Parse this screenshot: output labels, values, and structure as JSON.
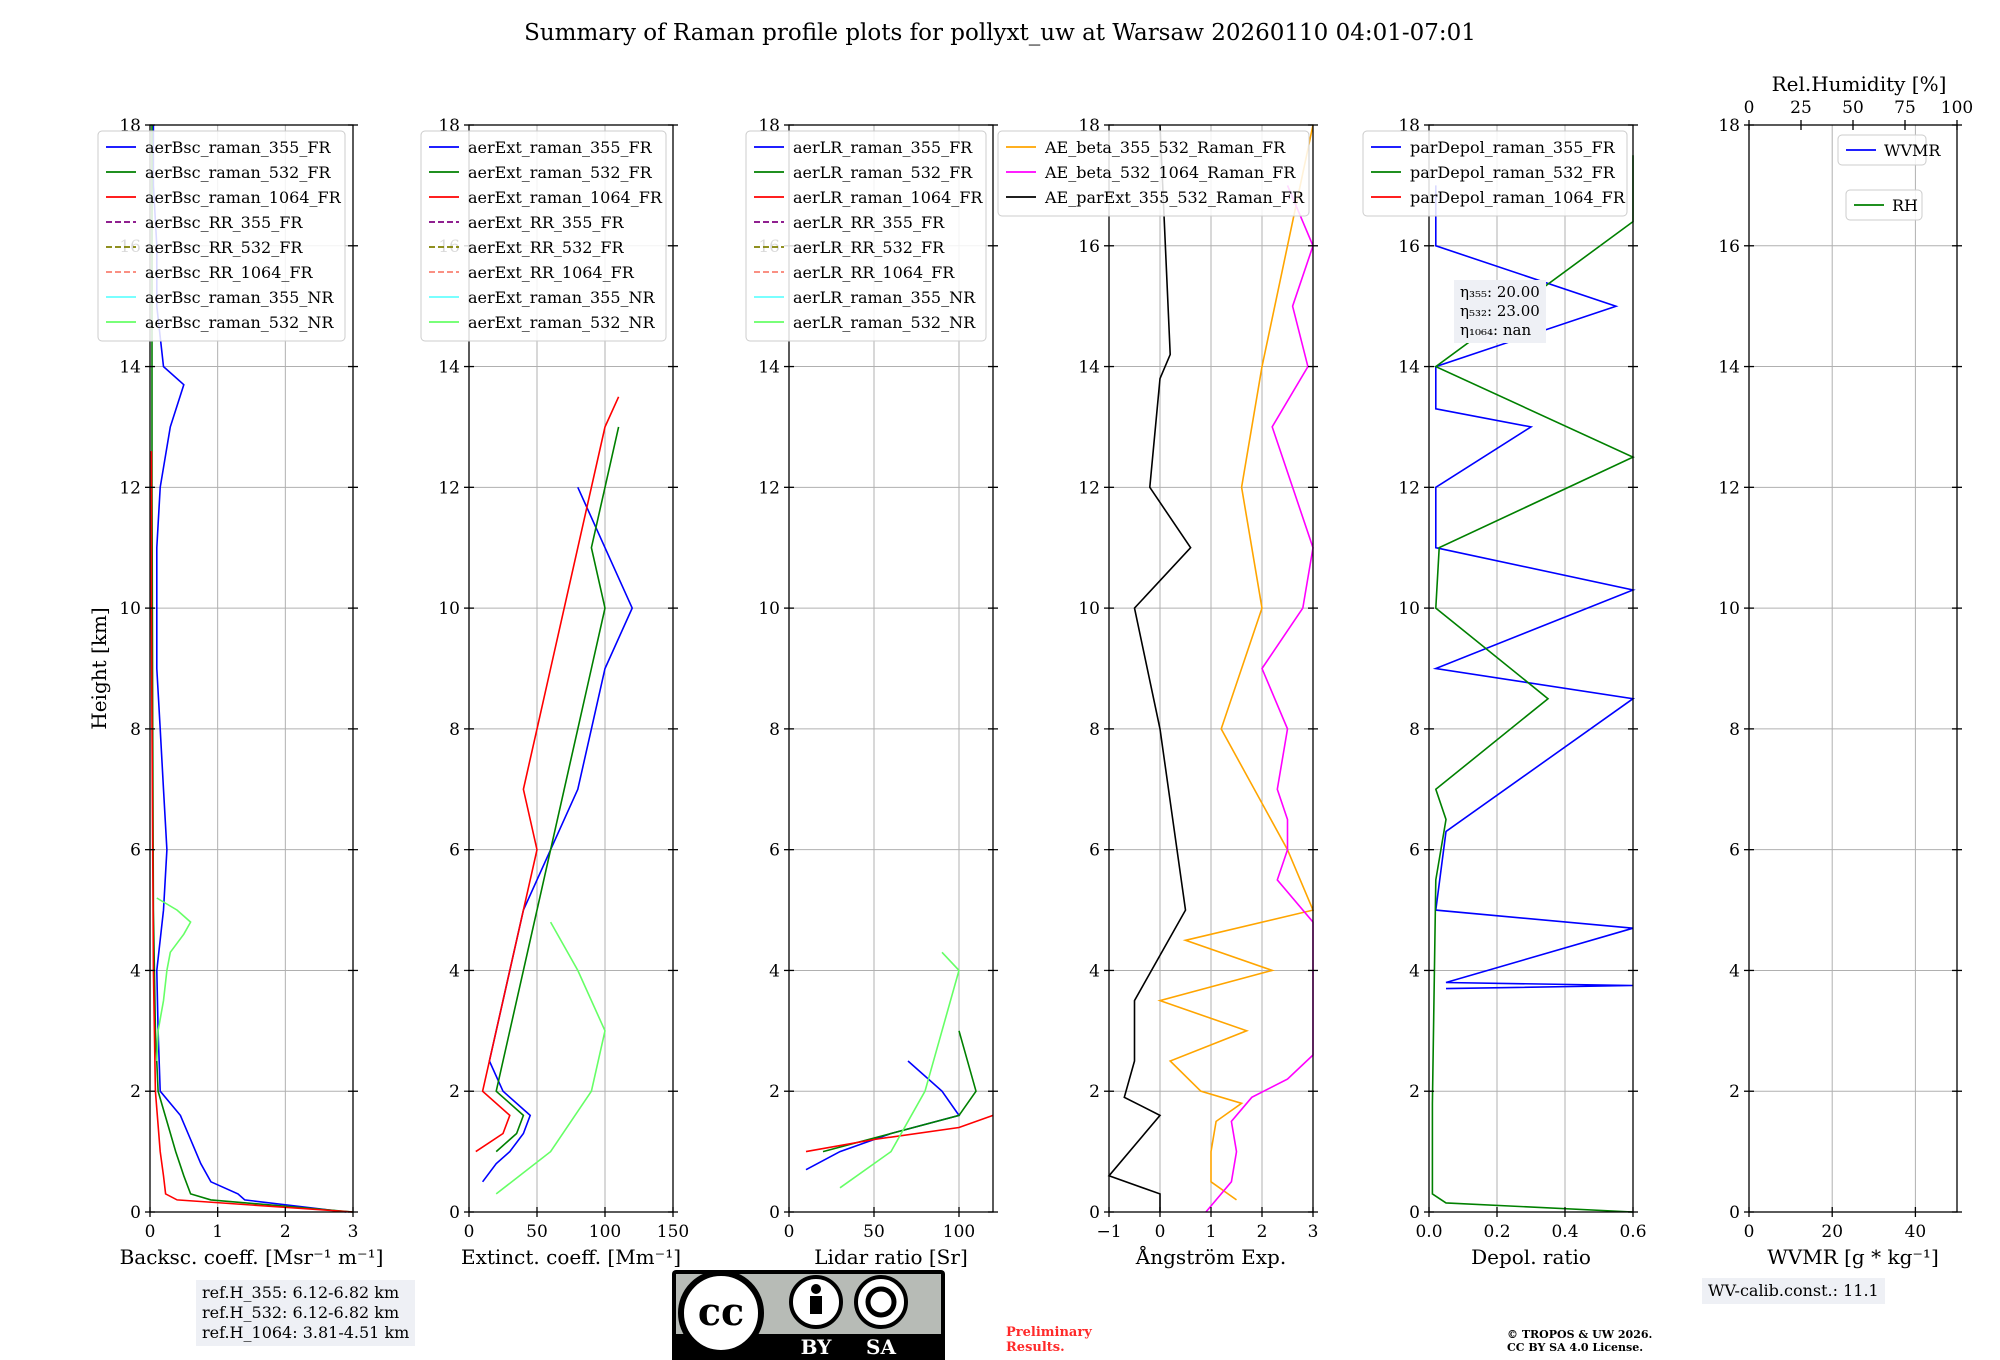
{
  "title": "Summary of Raman profile plots for pollyxt_uw at Warsaw 20260110 04:01-07:01",
  "colors": {
    "blue": "#0000ff",
    "green": "#008000",
    "red": "#ff0000",
    "purple": "#800080",
    "olive": "#808000",
    "salmon": "#fa8072",
    "cyan": "#66ffff",
    "lightgreen": "#66ff66",
    "orange": "#ffa500",
    "magenta": "#ff00ff",
    "black": "#000000"
  },
  "chart_data": [
    {
      "id": "bsc",
      "type": "line",
      "ylabel": "Height [km]",
      "xlabel": "Backsc. coeff. [Msr⁻¹ m⁻¹]",
      "xlim": [
        0,
        3
      ],
      "ylim": [
        0,
        18
      ],
      "xticks": [
        "0",
        "1",
        "2",
        "3"
      ],
      "yticks": [
        "0",
        "2",
        "4",
        "6",
        "8",
        "10",
        "12",
        "14",
        "16",
        "18"
      ],
      "legend": [
        "aerBsc_raman_355_FR",
        "aerBsc_raman_532_FR",
        "aerBsc_raman_1064_FR",
        "aerBsc_RR_355_FR",
        "aerBsc_RR_532_FR",
        "aerBsc_RR_1064_FR",
        "aerBsc_raman_355_NR",
        "aerBsc_raman_532_NR"
      ],
      "series": [
        {
          "name": "aerBsc_raman_355_FR",
          "color": "blue",
          "h": [
            0,
            0.2,
            0.3,
            0.5,
            0.8,
            1.2,
            1.6,
            2,
            3,
            4,
            5,
            6,
            7,
            8,
            9,
            10,
            11,
            12,
            13,
            13.7,
            14,
            15,
            16,
            17,
            18
          ],
          "v": [
            2.9,
            1.4,
            1.3,
            0.9,
            0.75,
            0.6,
            0.45,
            0.15,
            0.12,
            0.1,
            0.2,
            0.25,
            0.2,
            0.15,
            0.1,
            0.1,
            0.1,
            0.15,
            0.3,
            0.5,
            0.2,
            0.1,
            0.1,
            0.05,
            0.05
          ]
        },
        {
          "name": "aerBsc_raman_532_FR",
          "color": "green",
          "h": [
            0,
            0.2,
            0.3,
            0.6,
            1,
            1.5,
            2,
            3,
            5,
            8,
            12,
            18
          ],
          "v": [
            3.0,
            0.9,
            0.6,
            0.5,
            0.38,
            0.25,
            0.12,
            0.08,
            0.05,
            0.04,
            0.03,
            0.03
          ]
        },
        {
          "name": "aerBsc_raman_1064_FR",
          "color": "red",
          "h": [
            0,
            0.2,
            0.3,
            0.6,
            1,
            2,
            4,
            6,
            8,
            10,
            12,
            12.6
          ],
          "v": [
            3.0,
            0.4,
            0.23,
            0.2,
            0.15,
            0.08,
            0.05,
            0.04,
            0.03,
            0.02,
            0.02,
            0.02
          ]
        },
        {
          "name": "aerBsc_raman_532_NR",
          "color": "lightgreen",
          "h": [
            2.5,
            3,
            3.5,
            4,
            4.3,
            4.6,
            4.8,
            5,
            5.2
          ],
          "v": [
            0.1,
            0.12,
            0.2,
            0.25,
            0.3,
            0.5,
            0.6,
            0.4,
            0.1
          ]
        }
      ],
      "info": [
        "ref.H_355: 6.12-6.82 km",
        "ref.H_532: 6.12-6.82 km",
        "ref.H_1064: 3.81-4.51 km"
      ]
    },
    {
      "id": "ext",
      "type": "line",
      "xlabel": "Extinct. coeff. [Mm⁻¹]",
      "xlim": [
        0,
        150
      ],
      "ylim": [
        0,
        18
      ],
      "xticks": [
        "0",
        "50",
        "100",
        "150"
      ],
      "yticks": [
        "0",
        "2",
        "4",
        "6",
        "8",
        "10",
        "12",
        "14",
        "16",
        "18"
      ],
      "legend": [
        "aerExt_raman_355_FR",
        "aerExt_raman_532_FR",
        "aerExt_raman_1064_FR",
        "aerExt_RR_355_FR",
        "aerExt_RR_532_FR",
        "aerExt_RR_1064_FR",
        "aerExt_raman_355_NR",
        "aerExt_raman_532_NR"
      ],
      "series": [
        {
          "name": "aerExt_raman_355_FR",
          "color": "blue",
          "h": [
            0.5,
            0.8,
            1,
            1.3,
            1.6,
            2,
            2.5,
            3,
            4,
            5,
            6,
            7,
            8,
            9,
            10,
            11,
            12
          ],
          "v": [
            10,
            20,
            30,
            40,
            45,
            25,
            15,
            20,
            30,
            40,
            60,
            80,
            90,
            100,
            120,
            100,
            80
          ]
        },
        {
          "name": "aerExt_raman_532_FR",
          "color": "green",
          "h": [
            1,
            1.3,
            1.6,
            2,
            3,
            4,
            5,
            6,
            7,
            8,
            9,
            10,
            11,
            12,
            13
          ],
          "v": [
            20,
            35,
            40,
            20,
            30,
            40,
            50,
            60,
            70,
            80,
            90,
            100,
            90,
            100,
            110
          ]
        },
        {
          "name": "aerExt_raman_1064_FR",
          "color": "red",
          "h": [
            1,
            1.3,
            1.6,
            2,
            3,
            4,
            5,
            6,
            7,
            8,
            9,
            10,
            11,
            12,
            13,
            13.5
          ],
          "v": [
            5,
            25,
            30,
            10,
            20,
            30,
            40,
            50,
            40,
            50,
            60,
            70,
            80,
            90,
            100,
            110
          ]
        },
        {
          "name": "aerExt_raman_532_NR",
          "color": "lightgreen",
          "h": [
            0.3,
            1,
            2,
            3,
            4,
            4.8
          ],
          "v": [
            20,
            60,
            90,
            100,
            80,
            60
          ]
        }
      ]
    },
    {
      "id": "lr",
      "type": "line",
      "xlabel": "Lidar ratio [Sr]",
      "xlim": [
        0,
        120
      ],
      "ylim": [
        0,
        18
      ],
      "xticks": [
        "0",
        "50",
        "100"
      ],
      "yticks": [
        "0",
        "2",
        "4",
        "6",
        "8",
        "10",
        "12",
        "14",
        "16",
        "18"
      ],
      "legend": [
        "aerLR_raman_355_FR",
        "aerLR_raman_532_FR",
        "aerLR_raman_1064_FR",
        "aerLR_RR_355_FR",
        "aerLR_RR_532_FR",
        "aerLR_RR_1064_FR",
        "aerLR_raman_355_NR",
        "aerLR_raman_532_NR"
      ],
      "series": [
        {
          "name": "aerLR_raman_355_FR",
          "color": "blue",
          "h": [
            0.7,
            1,
            1.3,
            1.6,
            2,
            2.5
          ],
          "v": [
            10,
            30,
            60,
            100,
            90,
            70
          ]
        },
        {
          "name": "aerLR_raman_532_FR",
          "color": "green",
          "h": [
            1,
            1.3,
            1.6,
            2,
            3
          ],
          "v": [
            20,
            60,
            100,
            110,
            100
          ]
        },
        {
          "name": "aerLR_raman_1064_FR",
          "color": "red",
          "h": [
            1,
            1.2,
            1.4,
            1.6
          ],
          "v": [
            10,
            50,
            100,
            120
          ]
        },
        {
          "name": "aerLR_raman_532_NR",
          "color": "lightgreen",
          "h": [
            0.4,
            1,
            2,
            3,
            4,
            4.3
          ],
          "v": [
            30,
            60,
            80,
            90,
            100,
            90
          ]
        }
      ]
    },
    {
      "id": "ae",
      "type": "line",
      "xlabel": "Ångström Exp.",
      "xlim": [
        -1,
        3
      ],
      "ylim": [
        0,
        18
      ],
      "xticks": [
        "−1",
        "0",
        "1",
        "2",
        "3"
      ],
      "yticks": [
        "0",
        "2",
        "4",
        "6",
        "8",
        "10",
        "12",
        "14",
        "16",
        "18"
      ],
      "legend": [
        "AE_beta_355_532_Raman_FR",
        "AE_beta_532_1064_Raman_FR",
        "AE_parExt_355_532_Raman_FR"
      ],
      "series": [
        {
          "name": "AE_beta_355_532_Raman_FR",
          "color": "orange",
          "h": [
            0.2,
            0.5,
            1,
            1.5,
            1.8,
            2,
            2.5,
            3,
            3.5,
            4,
            4.5,
            5,
            6,
            8,
            10,
            12,
            14,
            16,
            18
          ],
          "v": [
            1.5,
            1.0,
            1.0,
            1.1,
            1.6,
            0.8,
            0.2,
            1.7,
            0.0,
            2.2,
            0.5,
            3.0,
            2.5,
            1.2,
            2.0,
            1.6,
            2.0,
            2.5,
            3.0
          ]
        },
        {
          "name": "AE_beta_532_1064_Raman_FR",
          "color": "magenta",
          "h": [
            0,
            0.5,
            1,
            1.5,
            1.9,
            2.2,
            2.6,
            4.8,
            5.5,
            6,
            6.5,
            7,
            8,
            9,
            10,
            11,
            12,
            13,
            14,
            15,
            16,
            17
          ],
          "v": [
            0.9,
            1.4,
            1.5,
            1.4,
            1.8,
            2.5,
            3.0,
            3.0,
            2.3,
            2.5,
            2.5,
            2.3,
            2.5,
            2.0,
            2.8,
            3.0,
            2.6,
            2.2,
            2.9,
            2.6,
            3.0,
            2.5
          ]
        },
        {
          "name": "AE_parExt_355_532_Raman_FR",
          "color": "black",
          "h": [
            0,
            0.3,
            0.6,
            1.6,
            1.9,
            2.5,
            3.5,
            5,
            8,
            10,
            11,
            12,
            13.8,
            14.2,
            18
          ],
          "v": [
            0.0,
            0.0,
            -1.0,
            0.0,
            -0.7,
            -0.5,
            -0.5,
            0.5,
            0.0,
            -0.5,
            0.6,
            -0.2,
            0.0,
            0.2,
            0.0
          ]
        }
      ]
    },
    {
      "id": "dep",
      "type": "line",
      "xlabel": "Depol. ratio",
      "xlim": [
        0,
        0.6
      ],
      "ylim": [
        0,
        18
      ],
      "xticks": [
        "0.0",
        "0.2",
        "0.4",
        "0.6"
      ],
      "yticks": [
        "0",
        "2",
        "4",
        "6",
        "8",
        "10",
        "12",
        "14",
        "16",
        "18"
      ],
      "legend": [
        "parDepol_raman_355_FR",
        "parDepol_raman_532_FR",
        "parDepol_raman_1064_FR"
      ],
      "series": [
        {
          "name": "parDepol_raman_355_FR",
          "color": "blue",
          "h": [
            3.7,
            3.75,
            3.8,
            4.7,
            5,
            6.3,
            8.5,
            9,
            10.3,
            11,
            12,
            13,
            13.3,
            14,
            15,
            16,
            17
          ],
          "v": [
            0.05,
            0.6,
            0.05,
            0.6,
            0.02,
            0.05,
            0.6,
            0.02,
            0.6,
            0.02,
            0.02,
            0.3,
            0.02,
            0.02,
            0.55,
            0.02,
            0.02
          ]
        },
        {
          "name": "parDepol_raman_532_FR",
          "color": "green",
          "h": [
            0,
            0.15,
            0.3,
            1.8,
            5.5,
            6.5,
            7,
            8.5,
            10,
            11,
            12.5,
            14,
            16.4,
            17.5
          ],
          "v": [
            0.6,
            0.05,
            0.01,
            0.01,
            0.02,
            0.05,
            0.02,
            0.35,
            0.02,
            0.03,
            0.6,
            0.02,
            0.6,
            0.6
          ]
        }
      ],
      "eta": [
        "η₃₅₅: 20.00",
        "η₅₃₂: 23.00",
        "η₁₀₆₄: nan"
      ],
      "copyright": [
        "© TROPOS & UW 2026.",
        "CC BY SA 4.0 License."
      ]
    },
    {
      "id": "wv",
      "type": "line",
      "xlabel": "WVMR [g * kg⁻¹]",
      "top_xlabel": "Rel.Humidity [%]",
      "xlim": [
        0,
        50
      ],
      "ylim": [
        0,
        18
      ],
      "xticks": [
        "0",
        "20",
        "40"
      ],
      "top_xticks": [
        "0",
        "25",
        "50",
        "75",
        "100"
      ],
      "yticks": [
        "0",
        "2",
        "4",
        "6",
        "8",
        "10",
        "12",
        "14",
        "16",
        "18"
      ],
      "legend": [
        "WVMR",
        "RH"
      ],
      "series": [],
      "info": [
        "WV-calib.const.: 11.1"
      ]
    }
  ],
  "license": {
    "cc": "cc",
    "by": "BY",
    "sa": "SA"
  },
  "prelim": [
    "Preliminary",
    "Results."
  ]
}
